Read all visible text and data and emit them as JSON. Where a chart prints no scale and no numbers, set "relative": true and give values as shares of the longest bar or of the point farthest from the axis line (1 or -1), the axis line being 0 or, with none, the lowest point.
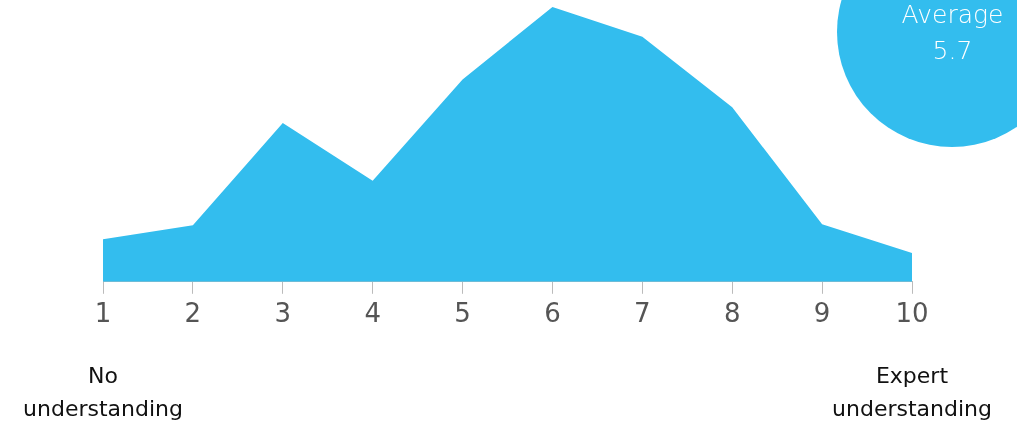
{
  "chart_data": {
    "type": "area",
    "relative": true,
    "categories": [
      "1",
      "2",
      "3",
      "4",
      "5",
      "6",
      "7",
      "8",
      "9",
      "10"
    ],
    "series": [
      {
        "color": "#33bdee",
        "values": [
          0.155,
          0.206,
          0.578,
          0.368,
          0.736,
          1,
          0.892,
          0.635,
          0.209,
          0.105
        ]
      }
    ],
    "annotations": [
      "No understanding",
      "Expert understanding",
      "Average 5.7"
    ]
  }
}
